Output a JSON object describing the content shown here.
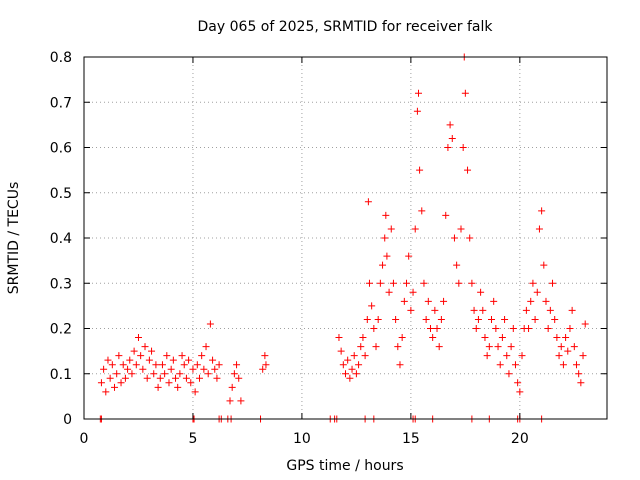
{
  "chart_data": {
    "type": "scatter",
    "title": "Day 065 of 2025, SRMTID for receiver falk",
    "xlabel": "GPS time / hours",
    "ylabel": "SRMTID / TECUs",
    "xlim": [
      0,
      24
    ],
    "ylim": [
      0,
      0.8
    ],
    "xticks": [
      0,
      5,
      10,
      15,
      20
    ],
    "yticks": [
      0,
      0.1,
      0.2,
      0.3,
      0.4,
      0.5,
      0.6,
      0.7,
      0.8
    ],
    "ytick_labels": [
      "0",
      "0.1",
      "0.2",
      "0.3",
      "0.4",
      "0.5",
      "0.6",
      "0.7",
      "0.8"
    ],
    "grid": true,
    "marker": "+",
    "color": "#ff0000",
    "series": [
      {
        "name": "SRMTID",
        "points": [
          [
            0.8,
            0.08
          ],
          [
            0.9,
            0.11
          ],
          [
            1.0,
            0.06
          ],
          [
            1.1,
            0.13
          ],
          [
            1.2,
            0.09
          ],
          [
            1.3,
            0.12
          ],
          [
            1.4,
            0.07
          ],
          [
            1.5,
            0.1
          ],
          [
            1.6,
            0.14
          ],
          [
            1.7,
            0.08
          ],
          [
            1.8,
            0.12
          ],
          [
            1.9,
            0.09
          ],
          [
            2.0,
            0.11
          ],
          [
            2.1,
            0.13
          ],
          [
            2.2,
            0.1
          ],
          [
            2.3,
            0.15
          ],
          [
            2.4,
            0.12
          ],
          [
            2.5,
            0.18
          ],
          [
            2.6,
            0.14
          ],
          [
            2.7,
            0.11
          ],
          [
            2.8,
            0.16
          ],
          [
            2.9,
            0.09
          ],
          [
            3.0,
            0.13
          ],
          [
            3.1,
            0.15
          ],
          [
            3.2,
            0.1
          ],
          [
            3.3,
            0.12
          ],
          [
            3.4,
            0.07
          ],
          [
            3.5,
            0.09
          ],
          [
            3.6,
            0.12
          ],
          [
            3.7,
            0.1
          ],
          [
            3.8,
            0.14
          ],
          [
            3.9,
            0.08
          ],
          [
            4.0,
            0.11
          ],
          [
            4.1,
            0.13
          ],
          [
            4.2,
            0.09
          ],
          [
            4.3,
            0.07
          ],
          [
            4.4,
            0.1
          ],
          [
            4.5,
            0.14
          ],
          [
            4.6,
            0.12
          ],
          [
            4.7,
            0.09
          ],
          [
            4.8,
            0.13
          ],
          [
            4.9,
            0.08
          ],
          [
            5.0,
            0.11
          ],
          [
            5.1,
            0.06
          ],
          [
            5.2,
            0.12
          ],
          [
            5.3,
            0.09
          ],
          [
            5.4,
            0.14
          ],
          [
            5.5,
            0.11
          ],
          [
            5.6,
            0.16
          ],
          [
            5.7,
            0.1
          ],
          [
            5.8,
            0.21
          ],
          [
            5.9,
            0.13
          ],
          [
            6.0,
            0.11
          ],
          [
            6.1,
            0.09
          ],
          [
            6.2,
            0.12
          ],
          [
            6.7,
            0.04
          ],
          [
            6.8,
            0.07
          ],
          [
            6.9,
            0.1
          ],
          [
            7.0,
            0.12
          ],
          [
            7.1,
            0.09
          ],
          [
            7.2,
            0.04
          ],
          [
            8.2,
            0.11
          ],
          [
            8.3,
            0.14
          ],
          [
            8.35,
            0.12
          ],
          [
            11.7,
            0.18
          ],
          [
            11.8,
            0.15
          ],
          [
            11.9,
            0.12
          ],
          [
            12.0,
            0.1
          ],
          [
            12.1,
            0.13
          ],
          [
            12.2,
            0.09
          ],
          [
            12.3,
            0.11
          ],
          [
            12.4,
            0.14
          ],
          [
            12.5,
            0.1
          ],
          [
            12.6,
            0.12
          ],
          [
            12.7,
            0.16
          ],
          [
            12.8,
            0.18
          ],
          [
            12.9,
            0.14
          ],
          [
            13.0,
            0.22
          ],
          [
            13.05,
            0.48
          ],
          [
            13.1,
            0.3
          ],
          [
            13.2,
            0.25
          ],
          [
            13.3,
            0.2
          ],
          [
            13.4,
            0.16
          ],
          [
            13.5,
            0.22
          ],
          [
            13.6,
            0.3
          ],
          [
            13.7,
            0.34
          ],
          [
            13.8,
            0.4
          ],
          [
            13.85,
            0.45
          ],
          [
            13.9,
            0.36
          ],
          [
            14.0,
            0.28
          ],
          [
            14.1,
            0.42
          ],
          [
            14.2,
            0.3
          ],
          [
            14.3,
            0.22
          ],
          [
            14.4,
            0.16
          ],
          [
            14.5,
            0.12
          ],
          [
            14.6,
            0.18
          ],
          [
            14.7,
            0.26
          ],
          [
            14.8,
            0.3
          ],
          [
            14.9,
            0.36
          ],
          [
            15.0,
            0.24
          ],
          [
            15.1,
            0.28
          ],
          [
            15.2,
            0.42
          ],
          [
            15.3,
            0.68
          ],
          [
            15.35,
            0.72
          ],
          [
            15.4,
            0.55
          ],
          [
            15.5,
            0.46
          ],
          [
            15.6,
            0.3
          ],
          [
            15.7,
            0.22
          ],
          [
            15.8,
            0.26
          ],
          [
            15.9,
            0.2
          ],
          [
            16.0,
            0.18
          ],
          [
            16.1,
            0.24
          ],
          [
            16.2,
            0.2
          ],
          [
            16.3,
            0.16
          ],
          [
            16.4,
            0.22
          ],
          [
            16.5,
            0.26
          ],
          [
            16.6,
            0.45
          ],
          [
            16.7,
            0.6
          ],
          [
            16.8,
            0.65
          ],
          [
            16.9,
            0.62
          ],
          [
            17.0,
            0.4
          ],
          [
            17.1,
            0.34
          ],
          [
            17.2,
            0.3
          ],
          [
            17.3,
            0.42
          ],
          [
            17.4,
            0.6
          ],
          [
            17.45,
            0.8
          ],
          [
            17.5,
            0.72
          ],
          [
            17.6,
            0.55
          ],
          [
            17.7,
            0.4
          ],
          [
            17.8,
            0.3
          ],
          [
            17.9,
            0.24
          ],
          [
            18.0,
            0.2
          ],
          [
            18.1,
            0.22
          ],
          [
            18.2,
            0.28
          ],
          [
            18.3,
            0.24
          ],
          [
            18.4,
            0.18
          ],
          [
            18.5,
            0.14
          ],
          [
            18.6,
            0.16
          ],
          [
            18.7,
            0.22
          ],
          [
            18.8,
            0.26
          ],
          [
            18.9,
            0.2
          ],
          [
            19.0,
            0.16
          ],
          [
            19.1,
            0.12
          ],
          [
            19.2,
            0.18
          ],
          [
            19.3,
            0.22
          ],
          [
            19.4,
            0.14
          ],
          [
            19.5,
            0.1
          ],
          [
            19.6,
            0.16
          ],
          [
            19.7,
            0.2
          ],
          [
            19.8,
            0.12
          ],
          [
            19.9,
            0.08
          ],
          [
            20.0,
            0.06
          ],
          [
            20.1,
            0.14
          ],
          [
            20.2,
            0.2
          ],
          [
            20.3,
            0.24
          ],
          [
            20.4,
            0.2
          ],
          [
            20.5,
            0.26
          ],
          [
            20.6,
            0.3
          ],
          [
            20.7,
            0.22
          ],
          [
            20.8,
            0.28
          ],
          [
            20.9,
            0.42
          ],
          [
            21.0,
            0.46
          ],
          [
            21.1,
            0.34
          ],
          [
            21.2,
            0.26
          ],
          [
            21.3,
            0.2
          ],
          [
            21.4,
            0.24
          ],
          [
            21.5,
            0.3
          ],
          [
            21.6,
            0.22
          ],
          [
            21.7,
            0.18
          ],
          [
            21.8,
            0.14
          ],
          [
            21.9,
            0.16
          ],
          [
            22.0,
            0.12
          ],
          [
            22.1,
            0.18
          ],
          [
            22.2,
            0.15
          ],
          [
            22.3,
            0.2
          ],
          [
            22.4,
            0.24
          ],
          [
            22.5,
            0.16
          ],
          [
            22.6,
            0.12
          ],
          [
            22.7,
            0.1
          ],
          [
            22.8,
            0.08
          ],
          [
            22.9,
            0.14
          ],
          [
            23.0,
            0.21
          ]
        ]
      }
    ],
    "zero_values_x": [
      0.75,
      0.8,
      5.0,
      5.05,
      6.2,
      6.3,
      6.6,
      6.75,
      8.1,
      11.3,
      11.5,
      11.6,
      12.9,
      13.3,
      15.1,
      15.2,
      16.0,
      17.8,
      18.6,
      19.9,
      20.0,
      21.0
    ]
  }
}
